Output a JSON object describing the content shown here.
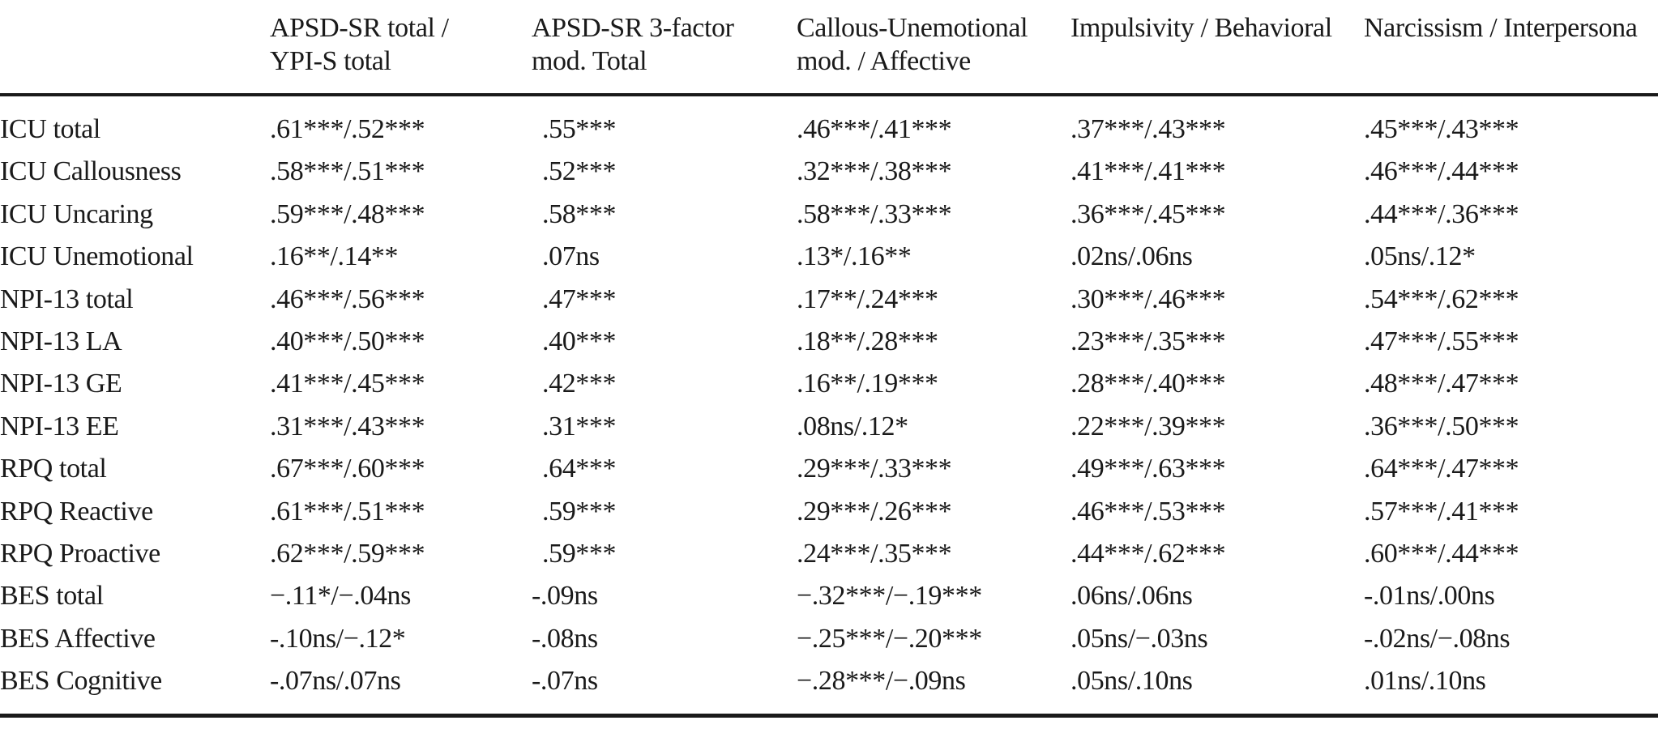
{
  "table": {
    "columns": [
      "",
      "APSD-SR total /\nYPI-S total",
      "APSD-SR 3-factor\nmod. Total",
      "Callous-Unemotional\nmod. / Affective",
      "Impulsivity / Behavioral",
      "Narcissism / Interpersona"
    ],
    "rows": [
      {
        "label": "ICU total",
        "cells": [
          ".61***/.52***",
          ".55***",
          ".46***/.41***",
          ".37***/.43***",
          ".45***/.43***"
        ]
      },
      {
        "label": "ICU Callousness",
        "cells": [
          ".58***/.51***",
          ".52***",
          ".32***/.38***",
          ".41***/.41***",
          ".46***/.44***"
        ]
      },
      {
        "label": "ICU Uncaring",
        "cells": [
          ".59***/.48***",
          ".58***",
          ".58***/.33***",
          ".36***/.45***",
          ".44***/.36***"
        ]
      },
      {
        "label": "ICU Unemotional",
        "cells": [
          ".16**/.14**",
          ".07ns",
          ".13*/.16**",
          ".02ns/.06ns",
          ".05ns/.12*"
        ]
      },
      {
        "label": "NPI-13 total",
        "cells": [
          ".46***/.56***",
          ".47***",
          ".17**/.24***",
          ".30***/.46***",
          ".54***/.62***"
        ]
      },
      {
        "label": "NPI-13 LA",
        "cells": [
          ".40***/.50***",
          ".40***",
          ".18**/.28***",
          ".23***/.35***",
          ".47***/.55***"
        ]
      },
      {
        "label": "NPI-13 GE",
        "cells": [
          ".41***/.45***",
          ".42***",
          ".16**/.19***",
          ".28***/.40***",
          ".48***/.47***"
        ]
      },
      {
        "label": "NPI-13 EE",
        "cells": [
          ".31***/.43***",
          ".31***",
          ".08ns/.12*",
          ".22***/.39***",
          ".36***/.50***"
        ]
      },
      {
        "label": "RPQ total",
        "cells": [
          ".67***/.60***",
          ".64***",
          ".29***/.33***",
          ".49***/.63***",
          ".64***/.47***"
        ]
      },
      {
        "label": "RPQ Reactive",
        "cells": [
          ".61***/.51***",
          ".59***",
          ".29***/.26***",
          ".46***/.53***",
          ".57***/.41***"
        ]
      },
      {
        "label": "RPQ Proactive",
        "cells": [
          ".62***/.59***",
          ".59***",
          ".24***/.35***",
          ".44***/.62***",
          ".60***/.44***"
        ]
      },
      {
        "label": "BES total",
        "cells": [
          "−.11*/−.04ns",
          "-.09ns",
          "−.32***/−.19***",
          ".06ns/.06ns",
          "-.01ns/.00ns"
        ]
      },
      {
        "label": "BES Affective",
        "cells": [
          "-.10ns/−.12*",
          "-.08ns",
          "−.25***/−.20***",
          ".05ns/−.03ns",
          "-.02ns/−.08ns"
        ]
      },
      {
        "label": "BES Cognitive",
        "cells": [
          "-.07ns/.07ns",
          "-.07ns",
          "−.28***/−.09ns",
          ".05ns/.10ns",
          ".01ns/.10ns"
        ]
      }
    ]
  }
}
